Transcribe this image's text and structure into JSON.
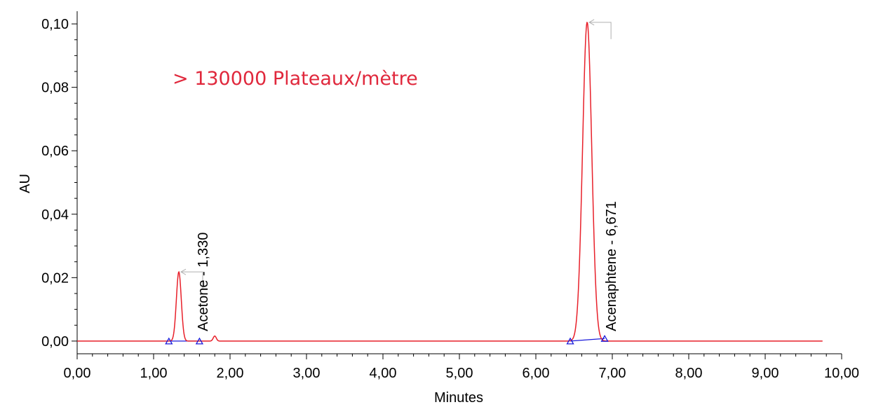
{
  "colors": {
    "trace": "#e8202a",
    "baseline": "#1a1adb",
    "annotation": "#e0283c",
    "axis": "#000000",
    "leader": "#b0b0b0"
  },
  "annotation_text": "> 130000 Plateaux/mètre",
  "chart_data": {
    "type": "line",
    "xlabel": "Minutes",
    "ylabel": "AU",
    "xlim": [
      0,
      10
    ],
    "ylim": [
      -0.004,
      0.104
    ],
    "x_ticks": [
      0,
      1,
      2,
      3,
      4,
      5,
      6,
      7,
      8,
      9,
      10
    ],
    "x_tick_labels": [
      "0,00",
      "1,00",
      "2,00",
      "3,00",
      "4,00",
      "5,00",
      "6,00",
      "7,00",
      "8,00",
      "9,00",
      "10,00"
    ],
    "y_ticks": [
      0,
      0.02,
      0.04,
      0.06,
      0.08,
      0.1
    ],
    "y_tick_labels": [
      "0,00",
      "0,02",
      "0,04",
      "0,06",
      "0,08",
      "0,10"
    ],
    "grid": false,
    "trace_range": [
      0,
      9.75
    ],
    "peaks": [
      {
        "label": "Acetone - 1,330",
        "rt": 1.33,
        "height": 0.0218,
        "width": 0.032,
        "start": 1.2,
        "end": 1.6
      },
      {
        "label": "Acenaphtene - 6,671",
        "rt": 6.671,
        "height": 0.1005,
        "width": 0.06,
        "start": 6.45,
        "end": 6.9
      }
    ],
    "minor_peaks": [
      {
        "rt": 1.8,
        "height": 0.0016,
        "width": 0.02
      }
    ],
    "baseline_segments": [
      {
        "x": [
          1.2,
          1.6
        ],
        "y": [
          0.0,
          0.0
        ]
      },
      {
        "x": [
          6.45,
          6.9
        ],
        "y": [
          0.0,
          0.0008
        ]
      }
    ]
  }
}
